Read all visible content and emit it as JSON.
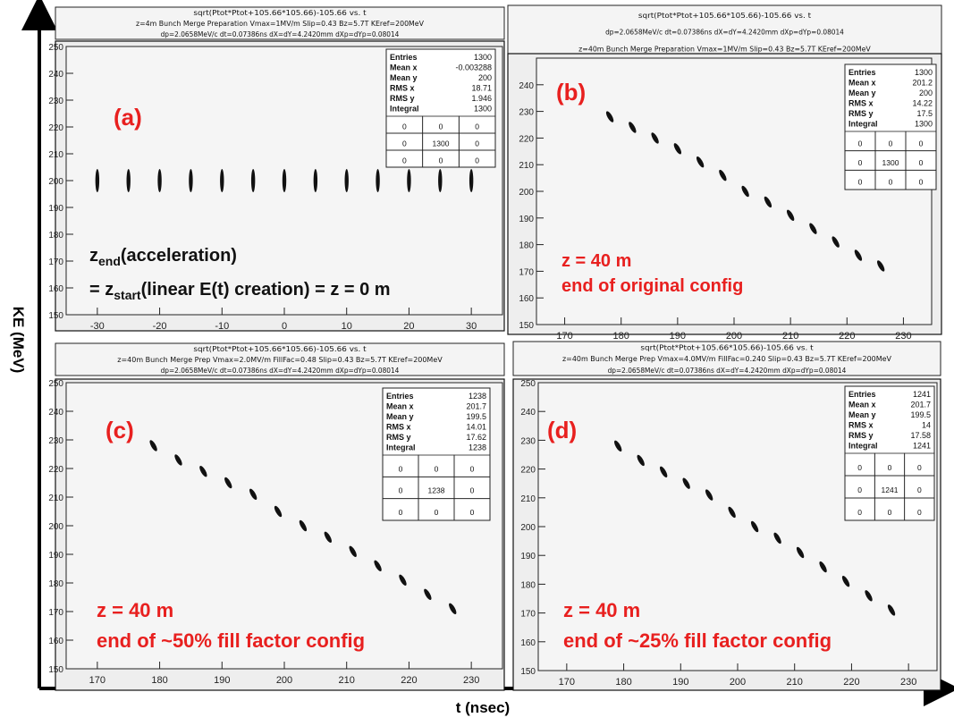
{
  "figure": {
    "ylabel": "KE (MeV)",
    "xlabel": "t (nsec)"
  },
  "colors": {
    "annotation": "#e8201f",
    "frame": "#000000",
    "panel_bg": "#eeeeee"
  },
  "chart_data": [
    {
      "type": "scatter",
      "panel_label": "(a)",
      "title_lines": [
        "sqrt(Ptot*Ptot+105.66*105.66)-105.66 vs. t",
        "z=4m Bunch Merge Preparation Vmax=1MV/m Slip=0.43 Bz=5.7T KEref=200MeV",
        "dp=2.0658MeV/c dt=0.07386ns dX=dY=4.2420mm dXp=dYp=0.08014"
      ],
      "xlim": [
        -35,
        35
      ],
      "ylim": [
        150,
        250
      ],
      "xticks": [
        -30,
        -20,
        -10,
        0,
        10,
        20,
        30
      ],
      "yticks": [
        150,
        160,
        170,
        180,
        190,
        200,
        210,
        220,
        230,
        240,
        250
      ],
      "x": [
        -30,
        -25,
        -20,
        -15,
        -10,
        -5,
        0,
        5,
        10,
        15,
        20,
        25,
        30
      ],
      "y": [
        200,
        200,
        200,
        200,
        200,
        200,
        200,
        200,
        200,
        200,
        200,
        200,
        200
      ],
      "stats": {
        "rows": [
          [
            "Entries",
            "1300"
          ],
          [
            "Mean x",
            "-0.003288"
          ],
          [
            "Mean y",
            "200"
          ],
          [
            "RMS x",
            "18.71"
          ],
          [
            "RMS y",
            "1.946"
          ],
          [
            "Integral",
            "1300"
          ]
        ],
        "grid": [
          [
            "0",
            "0",
            "0"
          ],
          [
            "0",
            "1300",
            "0"
          ],
          [
            "0",
            "0",
            "0"
          ]
        ]
      },
      "annotations": [
        {
          "color": "black",
          "lines": [
            "z_end(acceleration)",
            "= z_start(linear E(t) creation) = z = 0 m"
          ]
        }
      ]
    },
    {
      "type": "scatter",
      "panel_label": "(b)",
      "title_lines": [
        "sqrt(Ptot*Ptot+105.66*105.66)-105.66 vs. t",
        "dp=2.0658MeV/c dt=0.07386ns dX=dY=4.2420mm dXp=dYp=0.08014",
        "z=40m Bunch Merge Preparation Vmax=1MV/m Slip=0.43 Bz=5.7T KEref=200MeV"
      ],
      "xlim": [
        165,
        235
      ],
      "ylim": [
        150,
        250
      ],
      "xticks": [
        170,
        180,
        190,
        200,
        210,
        220,
        230
      ],
      "yticks": [
        150,
        160,
        170,
        180,
        190,
        200,
        210,
        220,
        230,
        240
      ],
      "x": [
        178,
        182,
        186,
        190,
        194,
        198,
        202,
        206,
        210,
        214,
        218,
        222,
        226
      ],
      "y": [
        228,
        224,
        220,
        216,
        211,
        206,
        200,
        196,
        191,
        186,
        181,
        176,
        172
      ],
      "stats": {
        "rows": [
          [
            "Entries",
            "1300"
          ],
          [
            "Mean x",
            "201.2"
          ],
          [
            "Mean y",
            "200"
          ],
          [
            "RMS x",
            "14.22"
          ],
          [
            "RMS y",
            "17.5"
          ],
          [
            "Integral",
            "1300"
          ]
        ],
        "grid": [
          [
            "0",
            "0",
            "0"
          ],
          [
            "0",
            "1300",
            "0"
          ],
          [
            "0",
            "0",
            "0"
          ]
        ]
      },
      "annotations": [
        {
          "color": "red",
          "lines": [
            "z = 40 m",
            "end of original config"
          ]
        }
      ]
    },
    {
      "type": "scatter",
      "panel_label": "(c)",
      "title_lines": [
        "sqrt(Ptot*Ptot+105.66*105.66)-105.66 vs. t",
        "z=40m Bunch Merge Prep Vmax=2.0MV/m FillFac=0.48 Slip=0.43 Bz=5.7T KEref=200MeV",
        "dp=2.0658MeV/c dt=0.07386ns dX=dY=4.2420mm dXp=dYp=0.08014"
      ],
      "xlim": [
        165,
        235
      ],
      "ylim": [
        150,
        250
      ],
      "xticks": [
        170,
        180,
        190,
        200,
        210,
        220,
        230
      ],
      "yticks": [
        150,
        160,
        170,
        180,
        190,
        200,
        210,
        220,
        230,
        240,
        250
      ],
      "x": [
        179,
        183,
        187,
        191,
        195,
        199,
        203,
        207,
        211,
        215,
        219,
        223,
        227
      ],
      "y": [
        228,
        223,
        219,
        215,
        211,
        205,
        200,
        196,
        191,
        186,
        181,
        176,
        171
      ],
      "stats": {
        "rows": [
          [
            "Entries",
            "1238"
          ],
          [
            "Mean x",
            "201.7"
          ],
          [
            "Mean y",
            "199.5"
          ],
          [
            "RMS x",
            "14.01"
          ],
          [
            "RMS y",
            "17.62"
          ],
          [
            "Integral",
            "1238"
          ]
        ],
        "grid": [
          [
            "0",
            "0",
            "0"
          ],
          [
            "0",
            "1238",
            "0"
          ],
          [
            "0",
            "0",
            "0"
          ]
        ]
      },
      "annotations": [
        {
          "color": "red",
          "lines": [
            "z = 40 m",
            "end of ~50% fill factor config"
          ]
        }
      ]
    },
    {
      "type": "scatter",
      "panel_label": "(d)",
      "title_lines": [
        "sqrt(Ptot*Ptot+105.66*105.66)-105.66 vs. t",
        "z=40m Bunch Merge Prep Vmax=4.0MV/m FillFac=0.240 Slip=0.43 Bz=5.7T KEref=200MeV",
        "dp=2.0658MeV/c dt=0.07386ns dX=dY=4.2420mm dXp=dYp=0.08014"
      ],
      "xlim": [
        165,
        235
      ],
      "ylim": [
        150,
        250
      ],
      "xticks": [
        170,
        180,
        190,
        200,
        210,
        220,
        230
      ],
      "yticks": [
        150,
        160,
        170,
        180,
        190,
        200,
        210,
        220,
        230,
        240,
        250
      ],
      "x": [
        179,
        183,
        187,
        191,
        195,
        199,
        203,
        207,
        211,
        215,
        219,
        223,
        227
      ],
      "y": [
        228,
        223,
        219,
        215,
        211,
        205,
        200,
        196,
        191,
        186,
        181,
        176,
        171
      ],
      "stats": {
        "rows": [
          [
            "Entries",
            "1241"
          ],
          [
            "Mean x",
            "201.7"
          ],
          [
            "Mean y",
            "199.5"
          ],
          [
            "RMS x",
            "14"
          ],
          [
            "RMS y",
            "17.58"
          ],
          [
            "Integral",
            "1241"
          ]
        ],
        "grid": [
          [
            "0",
            "0",
            "0"
          ],
          [
            "0",
            "1241",
            "0"
          ],
          [
            "0",
            "0",
            "0"
          ]
        ]
      },
      "annotations": [
        {
          "color": "red",
          "lines": [
            "z = 40 m",
            "end of ~25% fill factor config"
          ]
        }
      ]
    }
  ]
}
